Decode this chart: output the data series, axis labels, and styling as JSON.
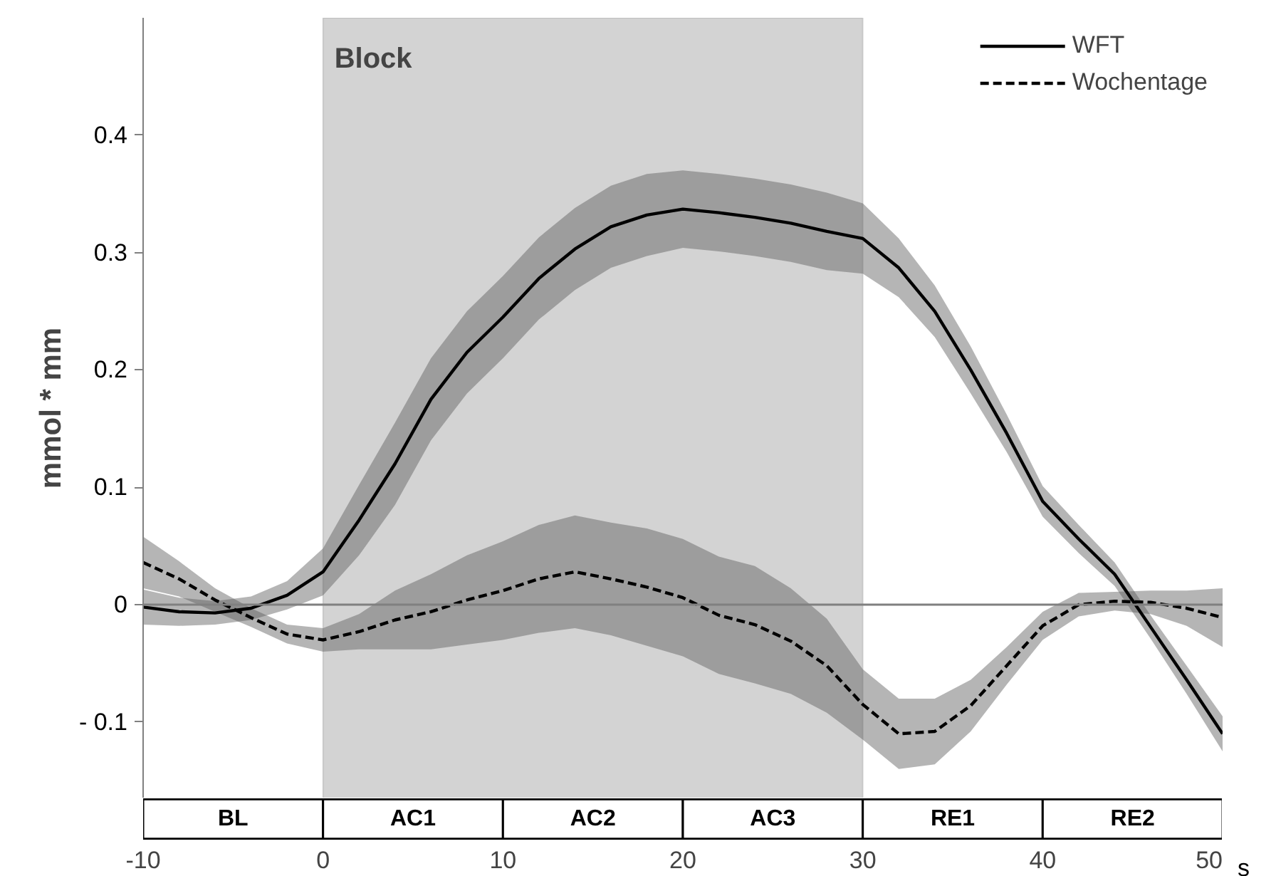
{
  "chart_data": {
    "type": "line",
    "ylabel": "mmol * mm",
    "xlabel": "s",
    "x": [
      -10,
      -8,
      -6,
      -4,
      -2,
      0,
      2,
      4,
      6,
      8,
      10,
      12,
      14,
      16,
      18,
      20,
      22,
      24,
      26,
      28,
      30,
      32,
      34,
      36,
      38,
      40,
      42,
      44,
      46,
      48,
      50
    ],
    "series": [
      {
        "name": "WFT",
        "color": "#000000",
        "line_style": "solid",
        "values": [
          -0.002,
          -0.006,
          -0.007,
          -0.003,
          0.008,
          0.028,
          0.072,
          0.12,
          0.175,
          0.215,
          0.245,
          0.278,
          0.303,
          0.322,
          0.332,
          0.337,
          0.334,
          0.33,
          0.325,
          0.318,
          0.312,
          0.287,
          0.25,
          0.2,
          0.146,
          0.088,
          0.056,
          0.026,
          -0.019,
          -0.064,
          -0.11
        ],
        "lower": [
          -0.017,
          -0.018,
          -0.017,
          -0.013,
          -0.004,
          0.008,
          0.042,
          0.085,
          0.14,
          0.18,
          0.21,
          0.243,
          0.268,
          0.287,
          0.297,
          0.304,
          0.301,
          0.297,
          0.292,
          0.285,
          0.282,
          0.262,
          0.228,
          0.18,
          0.13,
          0.075,
          0.044,
          0.016,
          -0.029,
          -0.076,
          -0.125
        ],
        "upper": [
          0.013,
          0.006,
          0.003,
          0.007,
          0.02,
          0.048,
          0.102,
          0.155,
          0.21,
          0.25,
          0.28,
          0.313,
          0.338,
          0.357,
          0.367,
          0.37,
          0.367,
          0.363,
          0.358,
          0.351,
          0.342,
          0.312,
          0.272,
          0.22,
          0.162,
          0.101,
          0.068,
          0.036,
          -0.009,
          -0.052,
          -0.095
        ]
      },
      {
        "name": "Wochentage",
        "color": "#000000",
        "line_style": "dashed",
        "values": [
          0.036,
          0.022,
          0.004,
          -0.011,
          -0.025,
          -0.03,
          -0.023,
          -0.013,
          -0.006,
          0.004,
          0.012,
          0.022,
          0.028,
          0.022,
          0.015,
          0.006,
          -0.009,
          -0.017,
          -0.031,
          -0.052,
          -0.085,
          -0.11,
          -0.108,
          -0.086,
          -0.052,
          -0.018,
          0.0,
          0.003,
          0.002,
          -0.003,
          -0.011
        ],
        "lower": [
          0.014,
          0.007,
          -0.006,
          -0.019,
          -0.033,
          -0.04,
          -0.038,
          -0.038,
          -0.038,
          -0.034,
          -0.03,
          -0.024,
          -0.02,
          -0.026,
          -0.035,
          -0.044,
          -0.059,
          -0.067,
          -0.076,
          -0.092,
          -0.115,
          -0.14,
          -0.136,
          -0.108,
          -0.068,
          -0.03,
          -0.01,
          -0.005,
          -0.008,
          -0.018,
          -0.036
        ],
        "upper": [
          0.058,
          0.037,
          0.014,
          -0.003,
          -0.017,
          -0.02,
          -0.008,
          0.012,
          0.026,
          0.042,
          0.054,
          0.068,
          0.076,
          0.07,
          0.065,
          0.056,
          0.041,
          0.033,
          0.014,
          -0.012,
          -0.055,
          -0.08,
          -0.08,
          -0.064,
          -0.036,
          -0.006,
          0.01,
          0.011,
          0.012,
          0.012,
          0.014
        ]
      }
    ],
    "xlim": [
      -10,
      50
    ],
    "ylim": [
      -0.165,
      0.5
    ],
    "xticks": [
      -10,
      0,
      10,
      20,
      30,
      40,
      50
    ],
    "yticks": [
      {
        "value": -0.1,
        "label": "- 0.1"
      },
      0,
      0.1,
      0.2,
      0.3,
      0.4
    ],
    "ref_lines": [
      {
        "axis": "y",
        "value": 0,
        "color": "#808080"
      }
    ],
    "bands": [
      {
        "axis": "x",
        "from": 0,
        "to": 30,
        "label": "Block",
        "color": "#d3d3d3"
      }
    ],
    "annotations": [
      "BL",
      "AC1",
      "AC2",
      "AC3",
      "RE1",
      "RE2"
    ],
    "legend": "top right",
    "grid": false,
    "marker": "none"
  }
}
